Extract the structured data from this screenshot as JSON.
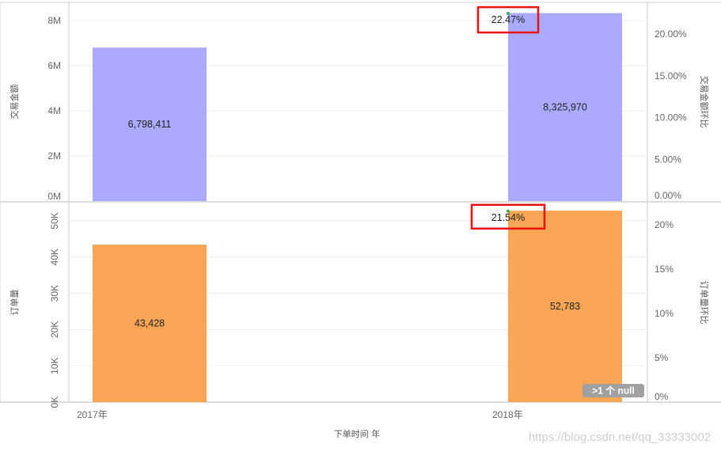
{
  "colors": {
    "amount_bar": "#aaaaff",
    "orders_bar": "#f8a655",
    "highlight_box": "#ee1111",
    "marker": "#33aa55",
    "grid": "#eeeeee",
    "axis_line": "#cccccc",
    "null_badge": "#a0a0a0"
  },
  "x_axis": {
    "title": "下单时间 年"
  },
  "null_badge": ">1 个 null",
  "watermark": "https://blog.csdn.net/qq_33333002",
  "chart_data": [
    {
      "type": "bar",
      "panel": "top",
      "categories": [
        "2017年",
        "2018年"
      ],
      "series": [
        {
          "name": "交易金额",
          "values": [
            6798411,
            8325970
          ],
          "labels": [
            "6,798,411",
            "8,325,970"
          ]
        }
      ],
      "ylabel": "交易金额",
      "ylim": [
        0,
        8800000
      ],
      "yticks": [
        0,
        2000000,
        4000000,
        6000000,
        8000000
      ],
      "ytick_labels": [
        "0M",
        "2M",
        "4M",
        "6M",
        "8M"
      ],
      "y2label": "交易金额环比",
      "y2lim": [
        0,
        0.238
      ],
      "y2ticks": [
        0,
        0.05,
        0.1,
        0.15,
        0.2
      ],
      "y2tick_labels": [
        "0.00%",
        "5.00%",
        "10.00%",
        "15.00%",
        "20.00%"
      ],
      "growth": {
        "category": "2018年",
        "value": 0.2247,
        "label": "22.47%"
      }
    },
    {
      "type": "bar",
      "panel": "bottom",
      "categories": [
        "2017年",
        "2018年"
      ],
      "series": [
        {
          "name": "订单量",
          "values": [
            43428,
            52783
          ],
          "labels": [
            "43,428",
            "52,783"
          ]
        }
      ],
      "ylabel": "订单量",
      "ylim": [
        0,
        55000
      ],
      "yticks": [
        0,
        10000,
        20000,
        30000,
        40000,
        50000
      ],
      "ytick_labels": [
        "0K",
        "10K",
        "20K",
        "30K",
        "40K",
        "50K"
      ],
      "y2label": "订单量环比",
      "y2lim": [
        0,
        0.225
      ],
      "y2ticks": [
        0,
        0.05,
        0.1,
        0.15,
        0.2
      ],
      "y2tick_labels": [
        "0%",
        "5%",
        "10%",
        "15%",
        "20%"
      ],
      "growth": {
        "category": "2018年",
        "value": 0.2154,
        "label": "21.54%"
      }
    }
  ]
}
